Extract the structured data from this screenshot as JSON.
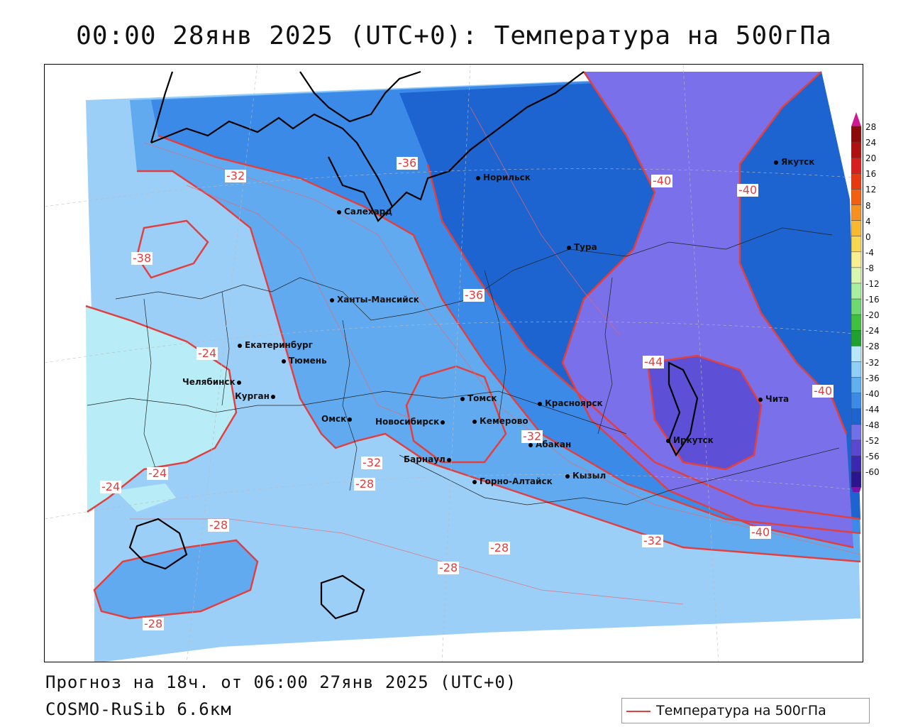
{
  "title": "00:00 28янв 2025 (UTC+0): Температура на 500гПа",
  "footer": {
    "forecast": "Прогноз на 18ч. от 06:00 27янв 2025 (UTC+0)",
    "model": "COSMO-RuSib 6.6км"
  },
  "legend": {
    "label": "Температура на 500гПа",
    "line_color": "#e0403f"
  },
  "colorbar": {
    "labels": [
      "28",
      "24",
      "20",
      "16",
      "12",
      "8",
      "4",
      "0",
      "-4",
      "-8",
      "-12",
      "-16",
      "-20",
      "-24",
      "-28",
      "-32",
      "-36",
      "-40",
      "-44",
      "-48",
      "-52",
      "-56",
      "-60"
    ],
    "colors": [
      "#8b0a0a",
      "#b01010",
      "#d81e1e",
      "#e83a10",
      "#f06010",
      "#f89020",
      "#f8b830",
      "#f8d850",
      "#f8f090",
      "#d8f8b0",
      "#a8f0a0",
      "#70d870",
      "#40c040",
      "#20a030",
      "#b8e8f8",
      "#90d0f8",
      "#60b0f0",
      "#3c8ae8",
      "#1e64d0",
      "#7070e8",
      "#5a48d0",
      "#3c28b0",
      "#2a1490",
      "#7a10b0"
    ]
  },
  "cities": [
    {
      "name": "Норильск"
    },
    {
      "name": "Салехард"
    },
    {
      "name": "Тура"
    },
    {
      "name": "Якутск"
    },
    {
      "name": "Ханты-Мансийск"
    },
    {
      "name": "Екатеринбург"
    },
    {
      "name": "Тюмень"
    },
    {
      "name": "Челябинск"
    },
    {
      "name": "Курган"
    },
    {
      "name": "Омск"
    },
    {
      "name": "Новосибирск"
    },
    {
      "name": "Томск"
    },
    {
      "name": "Кемерово"
    },
    {
      "name": "Красноярск"
    },
    {
      "name": "Абакан"
    },
    {
      "name": "Барнаул"
    },
    {
      "name": "Горно-Алтайск"
    },
    {
      "name": "Кызыл"
    },
    {
      "name": "Иркутск"
    },
    {
      "name": "Чита"
    }
  ],
  "contour_labels": [
    "-32",
    "-36",
    "-38",
    "-24",
    "-40",
    "-40",
    "-36",
    "-44",
    "-40",
    "-24",
    "-24",
    "-32",
    "-28",
    "-32",
    "-28",
    "-28",
    "-28",
    "-32",
    "-40",
    "-28"
  ]
}
